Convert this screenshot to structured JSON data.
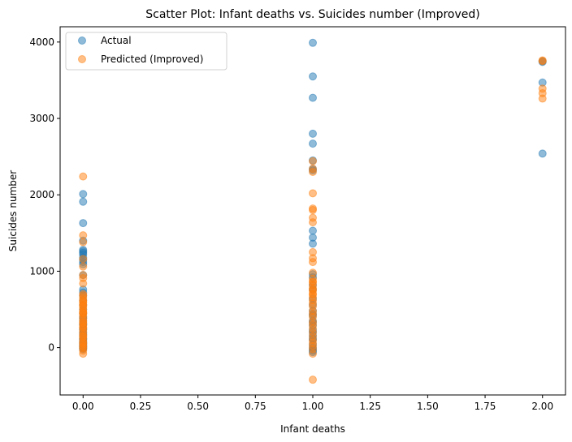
{
  "chart_data": {
    "type": "scatter",
    "title": "Scatter Plot: Infant deaths vs. Suicides number (Improved)",
    "xlabel": "Infant deaths",
    "ylabel": "Suicides number",
    "xlim": [
      -0.1,
      2.1
    ],
    "ylim": [
      -620,
      4200
    ],
    "xticks": [
      0.0,
      0.25,
      0.5,
      0.75,
      1.0,
      1.25,
      1.5,
      1.75,
      2.0
    ],
    "xtick_labels": [
      "0.00",
      "0.25",
      "0.50",
      "0.75",
      "1.00",
      "1.25",
      "1.50",
      "1.75",
      "2.00"
    ],
    "yticks": [
      0,
      1000,
      2000,
      3000,
      4000
    ],
    "ytick_labels": [
      "0",
      "1000",
      "2000",
      "3000",
      "4000"
    ],
    "grid": false,
    "legend_position": "top-left",
    "series": [
      {
        "name": "Actual",
        "color": "#1f77b4",
        "x": [
          0,
          0,
          0,
          0,
          0,
          0,
          0,
          0,
          0,
          0,
          0,
          0,
          0,
          0,
          0,
          0,
          0,
          0,
          0,
          0,
          0,
          0,
          0,
          0,
          0,
          0,
          0,
          0,
          0,
          0,
          0,
          0,
          0,
          0,
          0,
          0,
          0,
          0,
          0,
          0,
          0,
          0,
          1,
          1,
          1,
          1,
          1,
          1,
          1,
          1,
          1,
          1,
          1,
          1,
          1,
          1,
          1,
          1,
          1,
          1,
          1,
          1,
          1,
          1,
          1,
          1,
          1,
          1,
          1,
          1,
          1,
          1,
          1,
          1,
          1,
          2,
          2,
          2,
          2
        ],
        "y": [
          2010,
          1910,
          1630,
          1400,
          1280,
          1260,
          1240,
          1220,
          1180,
          1150,
          1120,
          1090,
          950,
          760,
          720,
          680,
          620,
          560,
          500,
          450,
          400,
          350,
          300,
          250,
          200,
          160,
          120,
          90,
          60,
          40,
          20,
          10,
          0,
          -10,
          -20,
          30,
          70,
          110,
          180,
          240,
          310,
          380,
          3990,
          3550,
          3270,
          2800,
          2670,
          2450,
          2340,
          2320,
          1530,
          1440,
          1360,
          960,
          920,
          820,
          760,
          640,
          560,
          480,
          440,
          350,
          290,
          200,
          160,
          100,
          40,
          0,
          -20,
          -40,
          -60,
          120,
          230,
          330,
          420,
          3750,
          3740,
          3470,
          2540
        ]
      },
      {
        "name": "Predicted (Improved)",
        "color": "#ff7f0e",
        "x": [
          0,
          0,
          0,
          0,
          0,
          0,
          0,
          0,
          0,
          0,
          0,
          0,
          0,
          0,
          0,
          0,
          0,
          0,
          0,
          0,
          0,
          0,
          0,
          0,
          0,
          0,
          0,
          0,
          0,
          0,
          0,
          0,
          0,
          0,
          0,
          0,
          0,
          0,
          0,
          0,
          0,
          0,
          0,
          0,
          1,
          1,
          1,
          1,
          1,
          1,
          1,
          1,
          1,
          1,
          1,
          1,
          1,
          1,
          1,
          1,
          1,
          1,
          1,
          1,
          1,
          1,
          1,
          1,
          1,
          1,
          1,
          1,
          1,
          1,
          1,
          1,
          1,
          1,
          1,
          1,
          1,
          1,
          1,
          2,
          2,
          2,
          2,
          2
        ],
        "y": [
          2240,
          1470,
          1380,
          1160,
          1060,
          950,
          910,
          840,
          700,
          680,
          650,
          620,
          590,
          560,
          530,
          500,
          470,
          440,
          410,
          380,
          350,
          320,
          290,
          260,
          230,
          200,
          170,
          140,
          110,
          80,
          50,
          20,
          -10,
          -40,
          -80,
          600,
          450,
          330,
          270,
          150,
          60,
          10,
          550,
          460,
          2440,
          2340,
          2300,
          2020,
          1820,
          1800,
          1700,
          1640,
          1250,
          1170,
          1120,
          980,
          900,
          860,
          820,
          780,
          740,
          700,
          660,
          620,
          580,
          540,
          480,
          440,
          400,
          340,
          300,
          250,
          200,
          150,
          100,
          60,
          20,
          -20,
          -80,
          -420,
          860,
          760,
          700,
          3760,
          3390,
          3330,
          3260,
          3750
        ]
      }
    ]
  }
}
